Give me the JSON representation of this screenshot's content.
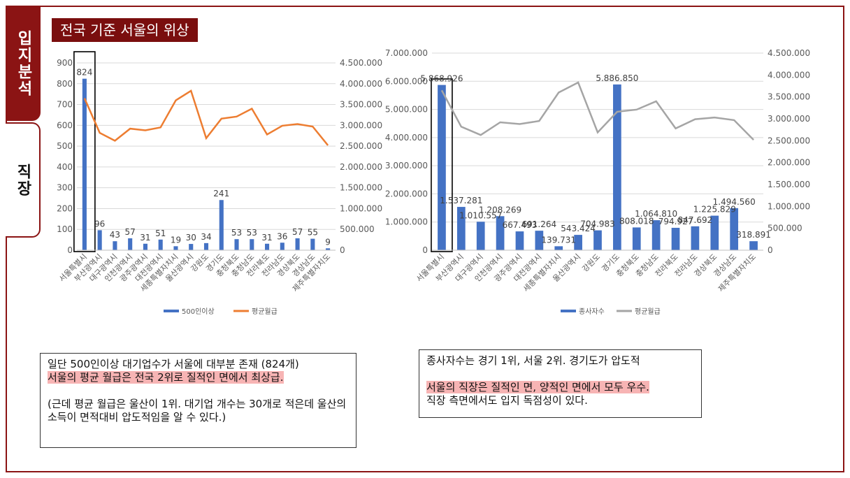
{
  "tabs": [
    {
      "label": "입지분석",
      "active": true
    },
    {
      "label": "직장",
      "active": false
    }
  ],
  "title": "전국 기준 서울의 위상",
  "colors": {
    "bar": "#4472c4",
    "line_orange": "#ed7d31",
    "line_gray": "#a5a5a5",
    "accent": "#8b1414",
    "highlight": "#f7b4b4"
  },
  "chart_data": [
    {
      "type": "bar",
      "categories": [
        "서울특별시",
        "부산광역시",
        "대구광역시",
        "인천광역시",
        "광주광역시",
        "대전광역시",
        "세종특별자치시",
        "울산광역시",
        "강원도",
        "경기도",
        "충청북도",
        "충청남도",
        "전라북도",
        "전라남도",
        "경상북도",
        "경상남도",
        "제주특별자치도"
      ],
      "series": [
        {
          "name": "500인이상",
          "type": "bar",
          "axis": "left",
          "values": [
            824,
            96,
            43,
            57,
            31,
            51,
            19,
            30,
            34,
            241,
            53,
            53,
            31,
            36,
            57,
            55,
            9
          ],
          "labels": [
            "824",
            "96",
            "43",
            "57",
            "31",
            "51",
            "19",
            "30",
            "34",
            "241",
            "53",
            "53",
            "31",
            "36",
            "57",
            "55",
            "9"
          ]
        },
        {
          "name": "평균월급",
          "type": "line",
          "axis": "right",
          "values": [
            3650000,
            2820000,
            2630000,
            2920000,
            2880000,
            2950000,
            3600000,
            3830000,
            2690000,
            3160000,
            3210000,
            3400000,
            2780000,
            2990000,
            3030000,
            2970000,
            2520000
          ]
        }
      ],
      "ylim_left": [
        0,
        900
      ],
      "yticks_left": [
        "0",
        "100",
        "200",
        "300",
        "400",
        "500",
        "600",
        "700",
        "800",
        "900"
      ],
      "ylim_right": [
        0,
        4500000
      ],
      "yticks_right": [
        "0",
        "500.000",
        "1.000.000",
        "1.500.000",
        "2.000.000",
        "2.500.000",
        "3.000.000",
        "3.500.000",
        "4.000.000",
        "4.500.000"
      ],
      "highlight_category": "서울특별시",
      "legend": "bottom"
    },
    {
      "type": "bar",
      "categories": [
        "서울특별시",
        "부산광역시",
        "대구광역시",
        "인천광역시",
        "광주광역시",
        "대전광역시",
        "세종특별자치시",
        "울산광역시",
        "강원도",
        "경기도",
        "충청북도",
        "충청남도",
        "전라북도",
        "전라남도",
        "경상북도",
        "경상남도",
        "제주특별자치도"
      ],
      "series": [
        {
          "name": "종사자수",
          "type": "bar",
          "axis": "left",
          "values": [
            5868926,
            1537281,
            1010557,
            1208269,
            667493,
            691264,
            139731,
            543424,
            704983,
            5886850,
            808018,
            1064810,
            794927,
            847692,
            1225829,
            1494560,
            318891
          ],
          "labels": [
            "5.868.926",
            "1.537.281",
            "1.010.557",
            "1.208.269",
            "667.493",
            "691.264",
            "139.731",
            "543.424",
            "704.983",
            "5.886.850",
            "808.018",
            "1.064.810",
            "794.927",
            "847.692",
            "1.225.829",
            "1.494.560",
            "318.891"
          ]
        },
        {
          "name": "평균월급",
          "type": "line",
          "axis": "right",
          "values": [
            3650000,
            2820000,
            2630000,
            2920000,
            2880000,
            2950000,
            3600000,
            3830000,
            2690000,
            3160000,
            3210000,
            3400000,
            2780000,
            2990000,
            3030000,
            2970000,
            2520000
          ]
        }
      ],
      "ylim_left": [
        0,
        7000000
      ],
      "yticks_left": [
        "0",
        "1.000.000",
        "2.000.000",
        "3.000.000",
        "4.000.000",
        "5.000.000",
        "6.000.000",
        "7.000.000"
      ],
      "ylim_right": [
        0,
        4500000
      ],
      "yticks_right": [
        "0",
        "500.000",
        "1.000.000",
        "1.500.000",
        "2.000.000",
        "2.500.000",
        "3.000.000",
        "3.500.000",
        "4.000.000",
        "4.500.000"
      ],
      "highlight_category": "서울특별시",
      "legend": "bottom"
    }
  ],
  "notes": {
    "left": {
      "line1": "일단 500인이상 대기업수가 서울에 대부분 존재 (824개)",
      "line2": "서울의 평균 월급은 전국 2위로 질적인 면에서 최상급.",
      "line3": "(근데 평균 월급은 울산이 1위. 대기업 개수는 30개로 적은데 울산의 소득이 면적대비 압도적임을 알 수 있다.)"
    },
    "right": {
      "line1": "종사자수는 경기 1위, 서울 2위. 경기도가 압도적",
      "line2": "서울의 직장은 질적인 면, 양적인 면에서 모두 우수.",
      "line3": "직장 측면에서도 입지 독점성이 있다."
    }
  }
}
